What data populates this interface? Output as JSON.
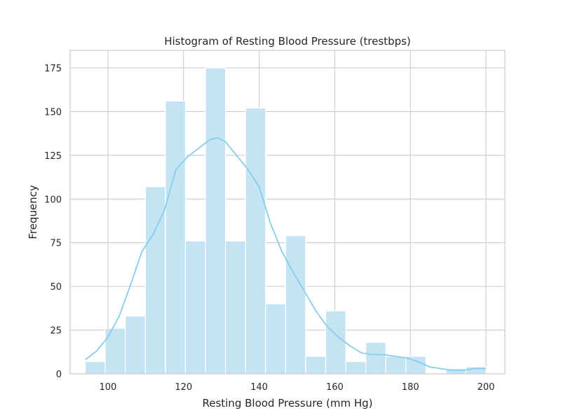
{
  "chart_data": {
    "type": "bar",
    "title": "Histogram of Resting Blood Pressure (trestbps)",
    "xlabel": "Resting Blood Pressure (mm Hg)",
    "ylabel": "Frequency",
    "xlim": [
      90,
      205
    ],
    "ylim": [
      0,
      185
    ],
    "xticks": [
      100,
      120,
      140,
      160,
      180,
      200
    ],
    "yticks": [
      0,
      25,
      50,
      75,
      100,
      125,
      150,
      175
    ],
    "grid": true,
    "legend": "none",
    "bin_edges": [
      94,
      99.3,
      104.6,
      109.9,
      115.2,
      120.5,
      125.8,
      131.1,
      136.4,
      141.7,
      147.0,
      152.3,
      157.6,
      162.9,
      168.2,
      173.5,
      178.8,
      184.1,
      189.4,
      194.7,
      200
    ],
    "values": [
      7,
      26,
      33,
      107,
      156,
      76,
      175,
      76,
      152,
      40,
      79,
      10,
      36,
      7,
      18,
      10,
      10,
      0,
      3,
      4
    ],
    "kde": {
      "x": [
        94,
        97,
        100,
        103,
        106,
        109,
        112,
        115,
        118,
        121,
        124,
        127,
        129,
        131,
        134,
        137,
        140,
        143,
        146,
        149,
        152,
        155,
        158,
        161,
        164,
        167,
        170,
        173,
        176,
        179,
        182,
        185,
        188,
        191,
        194,
        197,
        200
      ],
      "y": [
        8,
        13,
        21,
        33,
        51,
        70,
        80,
        94,
        117,
        124,
        129,
        134,
        135,
        133,
        125,
        117,
        107,
        86,
        70,
        58,
        47,
        36,
        27,
        21,
        16,
        12,
        11,
        11,
        10,
        9,
        7,
        4,
        3,
        2,
        2,
        3,
        3
      ]
    },
    "colors": {
      "bar_fill": "#c4e4f3",
      "bar_edge": "#ffffff",
      "kde_line": "#87ceeb",
      "grid": "#cccccc",
      "axes_edge": "#cccccc",
      "text": "#262626"
    }
  }
}
